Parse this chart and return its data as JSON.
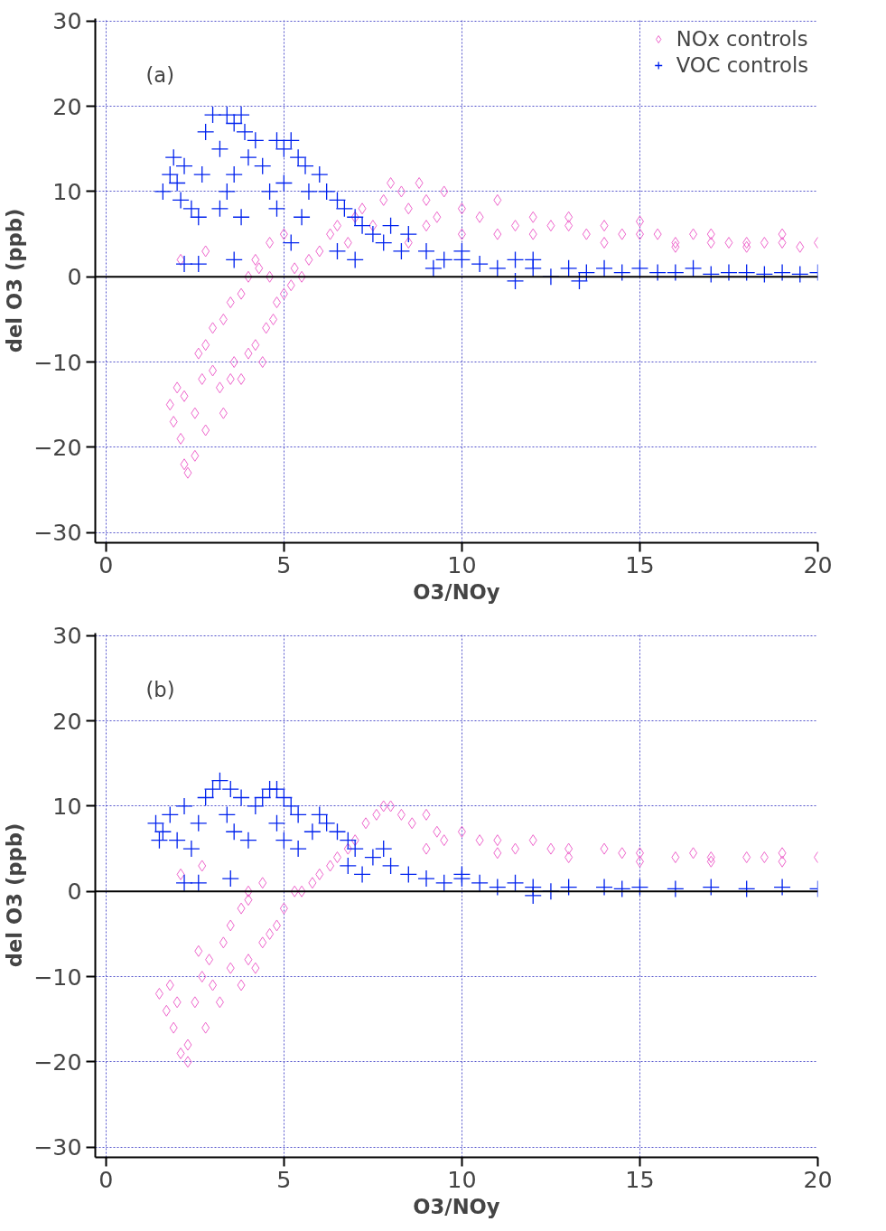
{
  "chart_data": [
    {
      "type": "scatter",
      "xlabel": "O3/NOy",
      "ylabel": "del O3 (ppb)",
      "annotations": [
        "(a)"
      ],
      "xlim": [
        -0.3,
        20
      ],
      "ylim": [
        -31.2,
        30.3
      ],
      "xticks": [
        0,
        5,
        10,
        15,
        20
      ],
      "yticks": [
        -30,
        -20,
        -10,
        0,
        10,
        20,
        30
      ],
      "grid": true,
      "legend": "top right",
      "ref_lines": [
        {
          "axis": "y",
          "value": 0,
          "color": "#000000"
        }
      ],
      "series": [
        {
          "name": "NOx controls",
          "color": "#ee66cc",
          "marker": "diamond",
          "x": [
            1.8,
            1.9,
            2.0,
            2.1,
            2.2,
            2.3,
            2.5,
            2.2,
            2.5,
            2.7,
            2.8,
            3.0,
            3.2,
            3.3,
            3.5,
            2.6,
            2.8,
            3.0,
            3.3,
            3.6,
            3.8,
            4.0,
            4.2,
            4.4,
            4.5,
            4.7,
            4.8,
            3.5,
            3.8,
            4.0,
            4.3,
            4.6,
            5.0,
            5.2,
            5.3,
            5.5,
            5.7,
            6.0,
            6.3,
            6.5,
            6.8,
            7.0,
            7.2,
            7.5,
            2.1,
            2.8,
            4.2,
            4.6,
            5.0,
            7.8,
            8.0,
            8.3,
            8.5,
            8.8,
            9.0,
            9.3,
            9.5,
            10,
            10.5,
            11,
            11.5,
            12,
            12.5,
            13,
            13.5,
            14,
            14.5,
            15,
            15.5,
            16,
            16.5,
            17,
            17.5,
            18,
            18.5,
            19,
            19.5,
            20,
            10,
            12,
            14,
            16,
            18,
            9,
            11,
            8.5,
            13,
            15,
            17,
            19
          ],
          "values": [
            -15,
            -17,
            -13,
            -19,
            -22,
            -23,
            -21,
            -14,
            -16,
            -12,
            -18,
            -11,
            -13,
            -16,
            -12,
            -9,
            -8,
            -6,
            -5,
            -10,
            -12,
            -9,
            -8,
            -10,
            -6,
            -5,
            -3,
            -3,
            -2,
            0,
            1,
            0,
            -2,
            -1,
            1,
            0,
            2,
            3,
            5,
            6,
            4,
            7,
            8,
            6,
            2,
            3,
            2,
            4,
            5,
            9,
            11,
            10,
            8,
            11,
            9,
            7,
            10,
            8,
            7,
            9,
            6,
            7,
            6,
            6,
            5,
            6,
            5,
            5,
            5,
            4,
            5,
            4,
            4,
            4,
            4,
            4,
            3.5,
            4,
            5,
            5,
            4,
            3.5,
            3.5,
            6,
            5,
            4,
            7,
            6.5,
            5,
            5
          ]
        },
        {
          "name": "VOC controls",
          "color": "#0022ee",
          "marker": "cross",
          "x": [
            1.6,
            1.8,
            1.9,
            2.0,
            2.1,
            2.2,
            2.4,
            2.6,
            2.7,
            2.8,
            3.0,
            3.2,
            3.4,
            3.6,
            3.8,
            3.9,
            4.0,
            3.6,
            3.4,
            3.2,
            3.8,
            4.2,
            4.4,
            4.6,
            4.8,
            5.0,
            5.2,
            5.4,
            5.6,
            5.0,
            4.8,
            5.5,
            5.2,
            5.7,
            6.0,
            6.2,
            6.5,
            6.7,
            7.0,
            7.2,
            7.5,
            6.5,
            7.0,
            7.8,
            8.0,
            8.3,
            8.5,
            9.0,
            9.5,
            10,
            10.5,
            11,
            11.5,
            12,
            12.5,
            13,
            13.5,
            14,
            14.5,
            15,
            15.5,
            16,
            16.5,
            17,
            17.5,
            18,
            18.5,
            19,
            19.5,
            20,
            2.2,
            2.6,
            3.6,
            9.2,
            11.5,
            13.3,
            10,
            12
          ],
          "values": [
            10,
            12,
            14,
            11,
            9,
            13,
            8,
            7,
            12,
            17,
            19,
            15,
            19,
            18,
            19,
            17,
            14,
            12,
            10,
            8,
            7,
            16,
            13,
            10,
            16,
            15,
            16,
            14,
            13,
            11,
            8,
            7,
            4,
            10,
            12,
            10,
            9,
            8,
            7,
            6,
            5,
            3,
            2,
            4,
            6,
            3,
            5,
            3,
            2,
            2,
            1.5,
            1,
            2,
            1,
            0,
            1,
            0.5,
            1,
            0.5,
            1,
            0.5,
            0.5,
            1,
            0.3,
            0.5,
            0.5,
            0.3,
            0.5,
            0.3,
            0.5,
            1.5,
            1.5,
            2,
            1,
            -0.5,
            -0.5,
            3,
            2
          ]
        }
      ]
    },
    {
      "type": "scatter",
      "xlabel": "O3/NOy",
      "ylabel": "del O3 (ppb)",
      "annotations": [
        "(b)"
      ],
      "xlim": [
        -0.3,
        20
      ],
      "ylim": [
        -31.2,
        30.3
      ],
      "xticks": [
        0,
        5,
        10,
        15,
        20
      ],
      "yticks": [
        -30,
        -20,
        -10,
        0,
        10,
        20,
        30
      ],
      "grid": true,
      "ref_lines": [
        {
          "axis": "y",
          "value": 0,
          "color": "#000000"
        }
      ],
      "series": [
        {
          "color": "#ee66cc",
          "marker": "diamond",
          "x": [
            1.5,
            1.7,
            1.8,
            1.9,
            2.0,
            2.1,
            2.3,
            2.3,
            2.5,
            2.7,
            2.8,
            3.0,
            3.2,
            2.6,
            2.9,
            3.3,
            3.5,
            3.8,
            4.0,
            4.2,
            4.4,
            4.6,
            4.8,
            3.5,
            3.8,
            4.0,
            4.4,
            5.0,
            5.3,
            5.5,
            5.8,
            6.0,
            6.3,
            6.5,
            6.8,
            7.0,
            2.1,
            2.7,
            4.0,
            7.3,
            7.6,
            7.8,
            8.0,
            8.3,
            8.6,
            9.0,
            9.3,
            9.5,
            10,
            10.5,
            11,
            11.5,
            12,
            12.5,
            13,
            14,
            14.5,
            15,
            16,
            16.5,
            17,
            18,
            18.5,
            19,
            20,
            9,
            11,
            13,
            15,
            17,
            19
          ],
          "values": [
            -12,
            -14,
            -11,
            -16,
            -13,
            -19,
            -20,
            -18,
            -13,
            -10,
            -16,
            -11,
            -13,
            -7,
            -8,
            -6,
            -9,
            -11,
            -8,
            -9,
            -6,
            -5,
            -4,
            -4,
            -2,
            -1,
            1,
            -2,
            0,
            0,
            1,
            2,
            3,
            4,
            5,
            6,
            2,
            3,
            0,
            8,
            9,
            10,
            10,
            9,
            8,
            9,
            7,
            6,
            7,
            6,
            6,
            5,
            6,
            5,
            5,
            5,
            4.5,
            4.5,
            4,
            4.5,
            4,
            4,
            4,
            3.5,
            4,
            5,
            4.5,
            4,
            3.5,
            3.5,
            4.5
          ]
        },
        {
          "color": "#0022ee",
          "marker": "cross",
          "x": [
            1.4,
            1.5,
            1.6,
            1.8,
            2.0,
            2.2,
            2.4,
            2.6,
            2.8,
            3.0,
            3.2,
            3.5,
            3.8,
            3.4,
            3.6,
            4.0,
            4.2,
            4.4,
            4.6,
            4.8,
            5.0,
            5.2,
            5.4,
            4.8,
            5.0,
            5.4,
            5.8,
            6.0,
            6.2,
            6.5,
            6.8,
            7.0,
            6.8,
            7.2,
            7.5,
            7.8,
            8.0,
            8.5,
            9.0,
            9.5,
            10,
            10.5,
            11,
            11.5,
            12,
            12.5,
            13,
            14,
            14.5,
            15,
            16,
            17,
            18,
            19,
            20,
            2.2,
            2.6,
            3.5,
            10,
            12
          ],
          "values": [
            8,
            6,
            7,
            9,
            6,
            10,
            5,
            8,
            11,
            12,
            13,
            12,
            11,
            9,
            7,
            6,
            10,
            11,
            12,
            12,
            11,
            10,
            9,
            8,
            6,
            5,
            7,
            9,
            8,
            7,
            6,
            5,
            3,
            2,
            4,
            5,
            3,
            2,
            1.5,
            1,
            1.5,
            1,
            0.5,
            1,
            0.5,
            0,
            0.5,
            0.5,
            0.3,
            0.5,
            0.3,
            0.5,
            0.3,
            0.5,
            0.3,
            1,
            1,
            1.5,
            2,
            -0.5
          ]
        }
      ]
    }
  ]
}
